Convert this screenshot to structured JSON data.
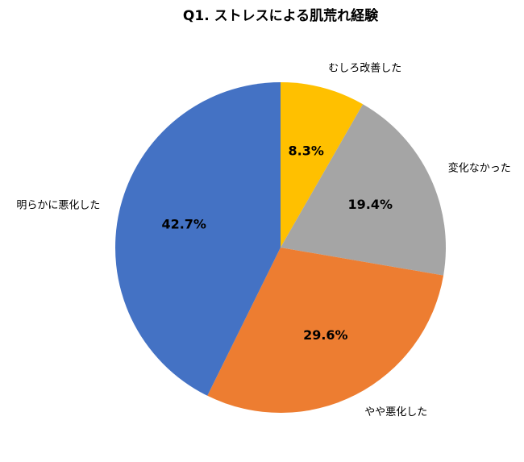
{
  "chart_data": {
    "type": "pie",
    "title": "Q1. ストレスによる肌荒れ経験",
    "categories": [
      "むしろ改善した",
      "変化なかった",
      "やや悪化した",
      "明らかに悪化した"
    ],
    "values": [
      8.3,
      19.4,
      29.6,
      42.7
    ],
    "value_labels": [
      "8.3%",
      "19.4%",
      "29.6%",
      "42.7%"
    ],
    "colors": [
      "#FFC000",
      "#A5A5A5",
      "#ED7D31",
      "#4472C4"
    ]
  }
}
